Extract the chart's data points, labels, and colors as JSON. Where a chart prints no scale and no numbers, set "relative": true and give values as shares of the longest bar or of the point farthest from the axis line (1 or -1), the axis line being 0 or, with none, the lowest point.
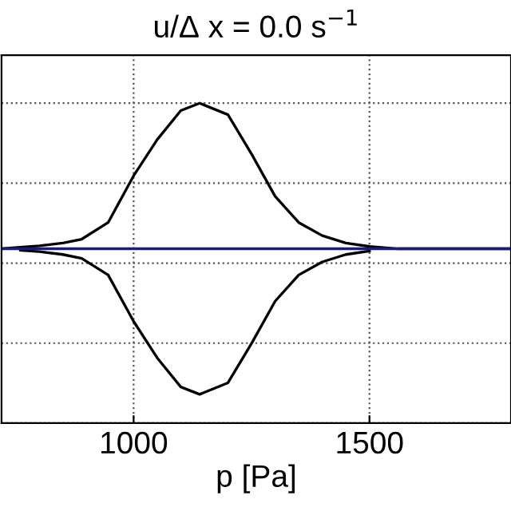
{
  "chart_data": {
    "type": "line",
    "title": "u/Δ x = 0.0 s$^{−1}$",
    "xlabel": "p [Pa]",
    "relative": true,
    "x": [
      720,
      760,
      800,
      850,
      890,
      946,
      1000,
      1050,
      1100,
      1140,
      1200,
      1250,
      1300,
      1350,
      1400,
      1450,
      1500,
      1560,
      1800
    ],
    "series": [
      {
        "color": "#000000",
        "values": [
          0.545,
          0.55,
          0.554,
          0.563,
          0.575,
          0.627,
          0.773,
          0.886,
          0.977,
          1,
          0.964,
          0.841,
          0.709,
          0.627,
          0.586,
          0.563,
          0.552,
          0.545,
          0.545
        ]
      },
      {
        "color": "#000000",
        "x": [
          760,
          800,
          850,
          890,
          946,
          1000,
          1050,
          1100,
          1140,
          1200,
          1250,
          1300,
          1350,
          1400,
          1450,
          1500
        ],
        "values": [
          0.54,
          0.536,
          0.527,
          0.515,
          0.463,
          0.318,
          0.204,
          0.113,
          0.09,
          0.126,
          0.249,
          0.381,
          0.463,
          0.504,
          0.527,
          0.538
        ]
      },
      {
        "color": "#1a1a80",
        "x": [
          720,
          1800
        ],
        "values": [
          0.545,
          0.545
        ]
      }
    ],
    "xlim": [
      720,
      1800
    ],
    "xticks": [
      1000,
      1500
    ],
    "tick_labels": "x",
    "grid": true,
    "legend": false,
    "line_style": "solid",
    "marker": "none"
  }
}
